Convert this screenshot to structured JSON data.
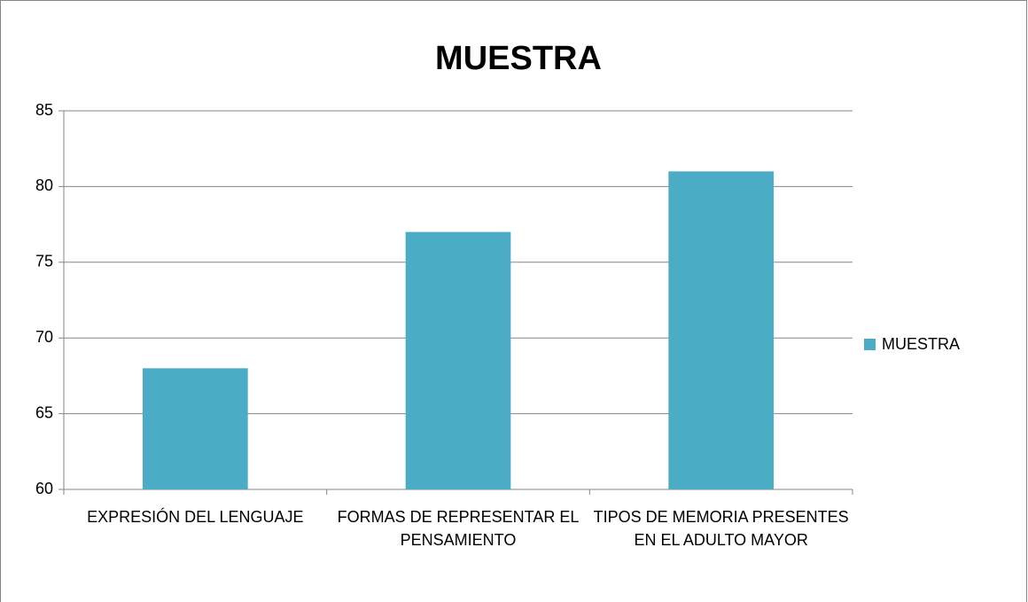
{
  "chart_data": {
    "type": "bar",
    "title": "MUESTRA",
    "categories": [
      "EXPRESIÓN DEL LENGUAJE",
      "FORMAS DE REPRESENTAR EL PENSAMIENTO",
      "TIPOS DE MEMORIA PRESENTES EN EL ADULTO MAYOR"
    ],
    "series": [
      {
        "name": "MUESTRA",
        "color": "#4bacc6",
        "values": [
          68,
          77,
          81
        ]
      }
    ],
    "ylim": [
      60,
      85
    ],
    "yticks": [
      60,
      65,
      70,
      75,
      80,
      85
    ],
    "grid": true,
    "legend": "right"
  }
}
